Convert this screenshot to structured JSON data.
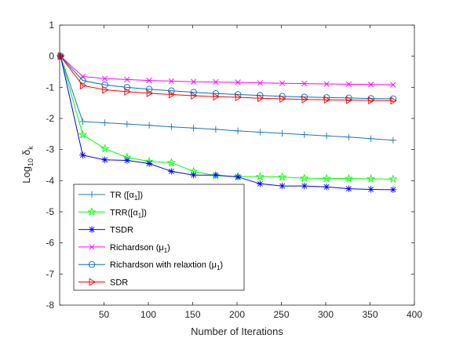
{
  "chart_data": {
    "type": "line",
    "xlabel": "Number of Iterations",
    "ylabel_prefix": "Log",
    "ylabel_sub": "10",
    "ylabel_symbol": "δ",
    "ylabel_symbol_sub": "k",
    "xlim": [
      0,
      400
    ],
    "ylim": [
      -8,
      1
    ],
    "xticks": [
      50,
      100,
      150,
      200,
      250,
      300,
      350,
      400
    ],
    "yticks": [
      1,
      0,
      -1,
      -2,
      -3,
      -4,
      -5,
      -6,
      -7,
      -8
    ],
    "grid": false,
    "legend_position": "lower-left",
    "x": [
      1,
      26,
      51,
      76,
      101,
      126,
      151,
      176,
      201,
      226,
      251,
      276,
      301,
      326,
      351,
      376
    ],
    "series": [
      {
        "name": "TR ([α1])",
        "legend_main": "TR ([α",
        "legend_sub": "1",
        "legend_tail": "])",
        "color": "#1f77b4",
        "marker": "plus",
        "values": [
          0,
          -2.1,
          -2.14,
          -2.18,
          -2.22,
          -2.27,
          -2.31,
          -2.35,
          -2.4,
          -2.44,
          -2.48,
          -2.52,
          -2.56,
          -2.6,
          -2.65,
          -2.7
        ]
      },
      {
        "name": "TRR([α1])",
        "legend_main": "TRR([α",
        "legend_sub": "1",
        "legend_tail": "])",
        "color": "#00ff00",
        "marker": "star",
        "values": [
          0,
          -2.52,
          -2.97,
          -3.25,
          -3.38,
          -3.42,
          -3.7,
          -3.84,
          -3.87,
          -3.87,
          -3.88,
          -3.92,
          -3.93,
          -3.93,
          -3.94,
          -3.95
        ]
      },
      {
        "name": "TSDR",
        "legend_main": "TSDR",
        "legend_sub": "",
        "legend_tail": "",
        "color": "#0000ff",
        "marker": "asterisk",
        "values": [
          0,
          -3.18,
          -3.33,
          -3.35,
          -3.45,
          -3.7,
          -3.82,
          -3.82,
          -3.88,
          -4.1,
          -4.17,
          -4.17,
          -4.2,
          -4.26,
          -4.28,
          -4.29
        ]
      },
      {
        "name": "Richardson (μ1)",
        "legend_main": "Richardson (μ",
        "legend_sub": "1",
        "legend_tail": ")",
        "color": "#ff00ff",
        "marker": "x",
        "values": [
          0,
          -0.65,
          -0.72,
          -0.75,
          -0.78,
          -0.8,
          -0.82,
          -0.83,
          -0.84,
          -0.86,
          -0.87,
          -0.88,
          -0.89,
          -0.9,
          -0.91,
          -0.92
        ]
      },
      {
        "name": "Richardson with relaxtion (μ1)",
        "legend_main": "Richardson with relaxtion (μ",
        "legend_sub": "1",
        "legend_tail": ")",
        "color": "#0072bd",
        "marker": "circle",
        "values": [
          0,
          -0.78,
          -0.92,
          -1.0,
          -1.06,
          -1.11,
          -1.16,
          -1.2,
          -1.23,
          -1.26,
          -1.29,
          -1.31,
          -1.33,
          -1.34,
          -1.36,
          -1.37
        ]
      },
      {
        "name": "SDR",
        "legend_main": "SDR",
        "legend_sub": "",
        "legend_tail": "",
        "color": "#ff0000",
        "marker": "triangle-right",
        "values": [
          0,
          -0.94,
          -1.08,
          -1.14,
          -1.19,
          -1.23,
          -1.27,
          -1.3,
          -1.32,
          -1.35,
          -1.37,
          -1.39,
          -1.4,
          -1.41,
          -1.42,
          -1.43
        ]
      }
    ]
  }
}
